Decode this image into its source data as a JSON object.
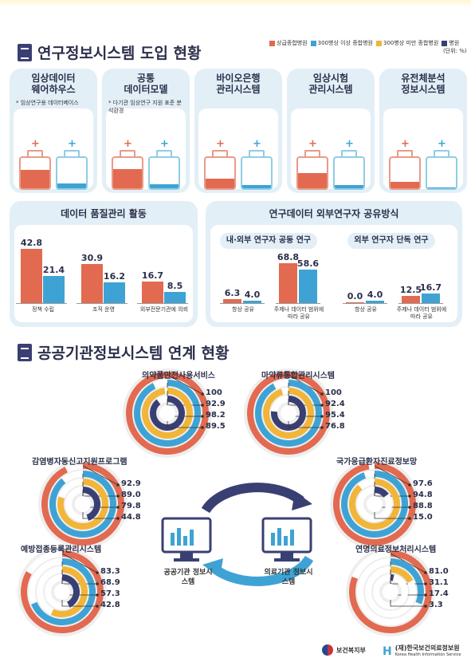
{
  "section1": {
    "title": "연구정보시스템 도입 현황"
  },
  "legend": [
    {
      "label": "상급종합병원",
      "color": "#e26a50"
    },
    {
      "label": "300병상 이상 종합병원",
      "color": "#3ea3d4"
    },
    {
      "label": "300병상 미만 종합병원",
      "color": "#f1b53a"
    },
    {
      "label": "병원",
      "color": "#3a3f73"
    }
  ],
  "unit": "(단위: %)",
  "systems": [
    {
      "title1": "임상데이터",
      "title2": "웨어하우스",
      "note": "* 임상연구용 데이터베이스",
      "v1": "59.5",
      "v2": "15.4"
    },
    {
      "title1": "공통",
      "title2": "데이터모델",
      "note": "* 다기관 임상연구 지원 표준 분석환경",
      "v1": "64.3",
      "v2": "14.4"
    },
    {
      "title1": "바이오은행",
      "title2": "관리시스템",
      "note": "",
      "v1": "31.0",
      "v2": "10.2"
    },
    {
      "title1": "임상시험",
      "title2": "관리시스템",
      "note": "",
      "v1": "50.0",
      "v2": "10.1"
    },
    {
      "title1": "유전체분석",
      "title2": "정보시스템",
      "note": "",
      "v1": "21.4",
      "v2": "3.4"
    }
  ],
  "quality": {
    "title": "데이터 품질관리 활동",
    "groups": [
      {
        "label": "정책 수립",
        "v1": "42.8",
        "v2": "21.4"
      },
      {
        "label": "조직 운영",
        "v1": "30.9",
        "v2": "16.2"
      },
      {
        "label": "외부전문기관에 의뢰",
        "v1": "16.7",
        "v2": "8.5"
      }
    ]
  },
  "sharing": {
    "title": "연구데이터 외부연구자 공유방식",
    "sub1": "내·외부 연구자 공동 연구",
    "sub2": "외부 연구자 단독 연구",
    "g1": [
      {
        "label": "항상 공유",
        "v1": "6.3",
        "v2": "4.0"
      },
      {
        "label": "주제나 데이터 범위에 따라 공유",
        "v1": "68.8",
        "v2": "58.6"
      }
    ],
    "g2": [
      {
        "label": "항상 공유",
        "v1": "0.0",
        "v2": "4.0"
      },
      {
        "label": "주제나 데이터 범위에 따라 공유",
        "v1": "12.5",
        "v2": "16.7"
      }
    ]
  },
  "section2": {
    "title": "공공기관정보시스템 연계 현황"
  },
  "linkage": [
    {
      "title": "의약품안전사용서비스",
      "values": [
        "100",
        "92.9",
        "98.2",
        "89.5"
      ]
    },
    {
      "title": "마약류통합관리시스템",
      "values": [
        "100",
        "92.4",
        "95.4",
        "76.8"
      ]
    },
    {
      "title": "감염병자동신고지원프로그램",
      "values": [
        "92.9",
        "89.0",
        "79.8",
        "44.8"
      ]
    },
    {
      "title": "국가응급환자진료정보망",
      "values": [
        "97.6",
        "94.8",
        "88.8",
        "15.0"
      ]
    },
    {
      "title": "예방접종등록관리시스템",
      "values": [
        "83.3",
        "68.9",
        "57.3",
        "42.8"
      ]
    },
    {
      "title": "연명의료정보처리시스템",
      "values": [
        "81.0",
        "31.1",
        "17.4",
        "3.3"
      ]
    }
  ],
  "center": {
    "left": "공공기관 정보시스템",
    "right": "의료기관 정보시스템"
  },
  "footer": {
    "ministry": "보건복지부",
    "agency": "(재)한국보건의료정보원",
    "agency_en": "Korea Health Information Service"
  },
  "chart_data": [
    {
      "type": "bar",
      "title": "연구정보시스템 도입 현황",
      "categories": [
        "임상데이터 웨어하우스",
        "공통 데이터모델",
        "바이오은행 관리시스템",
        "임상시험 관리시스템",
        "유전체분석 정보시스템"
      ],
      "series": [
        {
          "name": "상급종합병원",
          "values": [
            59.5,
            64.3,
            31.0,
            50.0,
            21.4
          ]
        },
        {
          "name": "300병상 이상 종합병원",
          "values": [
            15.4,
            14.4,
            10.2,
            10.1,
            3.4
          ]
        }
      ]
    },
    {
      "type": "bar",
      "title": "데이터 품질관리 활동",
      "categories": [
        "정책 수립",
        "조직 운영",
        "외부전문기관에 의뢰"
      ],
      "series": [
        {
          "name": "상급종합병원",
          "values": [
            42.8,
            30.9,
            16.7
          ]
        },
        {
          "name": "300병상 이상 종합병원",
          "values": [
            21.4,
            16.2,
            8.5
          ]
        }
      ]
    },
    {
      "type": "bar",
      "title": "내·외부 연구자 공동 연구",
      "categories": [
        "항상 공유",
        "주제나 데이터 범위에 따라 공유"
      ],
      "series": [
        {
          "name": "상급종합병원",
          "values": [
            6.3,
            68.8
          ]
        },
        {
          "name": "300병상 이상 종합병원",
          "values": [
            4.0,
            58.6
          ]
        }
      ]
    },
    {
      "type": "bar",
      "title": "외부 연구자 단독 연구",
      "categories": [
        "항상 공유",
        "주제나 데이터 범위에 따라 공유"
      ],
      "series": [
        {
          "name": "상급종합병원",
          "values": [
            0.0,
            12.5
          ]
        },
        {
          "name": "300병상 이상 종합병원",
          "values": [
            4.0,
            16.7
          ]
        }
      ]
    },
    {
      "type": "pie",
      "title": "공공기관정보시스템 연계 현황",
      "categories": [
        "의약품안전사용서비스",
        "마약류통합관리시스템",
        "감염병자동신고지원프로그램",
        "국가응급환자진료정보망",
        "예방접종등록관리시스템",
        "연명의료정보처리시스템"
      ],
      "series": [
        {
          "name": "상급종합병원",
          "values": [
            100,
            100,
            92.9,
            97.6,
            83.3,
            81.0
          ]
        },
        {
          "name": "300병상 이상 종합병원",
          "values": [
            92.9,
            92.4,
            89.0,
            94.8,
            68.9,
            31.1
          ]
        },
        {
          "name": "300병상 미만 종합병원",
          "values": [
            98.2,
            95.4,
            79.8,
            88.8,
            57.3,
            17.4
          ]
        },
        {
          "name": "병원",
          "values": [
            89.5,
            76.8,
            44.8,
            15.0,
            42.8,
            3.3
          ]
        }
      ]
    }
  ]
}
